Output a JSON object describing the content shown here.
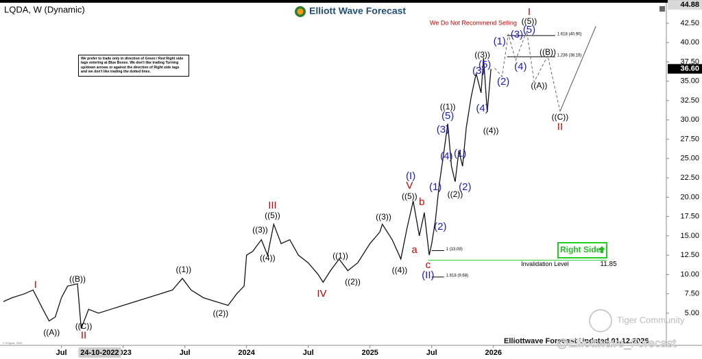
{
  "header": {
    "symbol": "LQDA, W (Dynamic)",
    "logo": "Elliott Wave Forecast",
    "notice": "We Do Not Recommend Selling",
    "disclaimer": "We prefer to trade only in direction of Green / Red Right side tags entering at Blue Boxes. We don't like trading Turning up/down arrows or against the direction of Right side tags and we don't like trading the dotted lines.",
    "right_side": "Right Side",
    "footer": "Elliottwave Forecast Updated 01.12.2026",
    "watermark": "Tiger Community",
    "handle": "@Elliottwave_Forecast",
    "copyright": "© eSignal, 2026"
  },
  "chart_data": {
    "type": "line",
    "color": "#111111",
    "x": [
      2022.03,
      2022.1,
      2022.2,
      2022.27,
      2022.35,
      2022.4,
      2022.45,
      2022.5,
      2022.55,
      2022.63,
      2022.66,
      2022.72,
      2022.8,
      2022.9,
      2023.0,
      2023.1,
      2023.2,
      2023.3,
      2023.4,
      2023.48,
      2023.55,
      2023.65,
      2023.75,
      2023.85,
      2023.92,
      2023.98,
      2024.0,
      2024.05,
      2024.12,
      2024.17,
      2024.22,
      2024.28,
      2024.35,
      2024.42,
      2024.5,
      2024.58,
      2024.62,
      2024.68,
      2024.75,
      2024.82,
      2024.9,
      2025.0,
      2025.08,
      2025.1,
      2025.18,
      2025.25,
      2025.3,
      2025.35,
      2025.4,
      2025.44,
      2025.48,
      2025.5,
      2025.53,
      2025.56,
      2025.6,
      2025.63,
      2025.66,
      2025.69,
      2025.72,
      2025.75,
      2025.78,
      2025.82,
      2025.86,
      2025.9,
      2025.92,
      2025.95,
      2025.98
    ],
    "values": [
      6.5,
      7.0,
      7.5,
      8.0,
      5.5,
      4.0,
      4.5,
      7.0,
      8.5,
      8.8,
      3.0,
      5.5,
      5.0,
      5.5,
      6.0,
      6.5,
      7.0,
      7.5,
      8.0,
      9.5,
      8.0,
      7.0,
      6.5,
      6.0,
      7.5,
      8.5,
      12.5,
      13.0,
      14.5,
      12.5,
      16.5,
      14.0,
      14.5,
      12.5,
      11.5,
      10.0,
      9.0,
      10.5,
      12.0,
      10.5,
      11.5,
      14.0,
      15.5,
      16.5,
      14.5,
      12.0,
      16.0,
      19.5,
      15.0,
      18.0,
      12.5,
      14.0,
      17.0,
      21.5,
      26.0,
      29.5,
      24.0,
      22.0,
      26.0,
      24.0,
      29.0,
      33.0,
      36.0,
      33.5,
      38.0,
      31.0,
      36.6
    ],
    "xlim": [
      2022.03,
      2027.39
    ],
    "ylim": [
      0.84,
      45.06
    ],
    "xticks": [
      {
        "value": 2022.5,
        "label": "Jul"
      },
      {
        "value": 2023,
        "label": "2023"
      },
      {
        "value": 2023.5,
        "label": "Jul"
      },
      {
        "value": 2024,
        "label": "2024"
      },
      {
        "value": 2024.5,
        "label": "Jul"
      },
      {
        "value": 2025,
        "label": "2025"
      },
      {
        "value": 2025.5,
        "label": "Jul"
      },
      {
        "value": 2026,
        "label": "2026"
      }
    ],
    "cursor_date": {
      "value": 2022.81,
      "label": "24-10-2022"
    },
    "yticks": [
      {
        "value": 5,
        "label": "5.00"
      },
      {
        "value": 7.5,
        "label": "7.50"
      },
      {
        "value": 10,
        "label": "10.00"
      },
      {
        "value": 12.5,
        "label": "12.50"
      },
      {
        "value": 15,
        "label": "15.00"
      },
      {
        "value": 17.5,
        "label": "17.50"
      },
      {
        "value": 20,
        "label": "20.00"
      },
      {
        "value": 22.5,
        "label": "22.50"
      },
      {
        "value": 25,
        "label": "25.00"
      },
      {
        "value": 27.5,
        "label": "27.50"
      },
      {
        "value": 30,
        "label": "30.00"
      },
      {
        "value": 32.5,
        "label": "32.50"
      },
      {
        "value": 35,
        "label": "35.00"
      },
      {
        "value": 37.5,
        "label": "37.50"
      },
      {
        "value": 40,
        "label": "40.00"
      },
      {
        "value": 42.5,
        "label": "42.50"
      }
    ],
    "price_labels": [
      {
        "value": 44.88,
        "label": "44.88",
        "color": "#d9d9d9",
        "text_color": "#000000"
      },
      {
        "value": 36.6,
        "label": "36.60",
        "color": "#000000",
        "text_color": "#ffffff"
      }
    ],
    "levels": [
      {
        "value": 40.9,
        "label": "1.618 (40.90)",
        "x": [
          2026.11,
          2026.5
        ],
        "color": "#000000"
      },
      {
        "value": 38.16,
        "label": "1.236 (38.16)",
        "x": [
          2026.11,
          2026.5
        ],
        "color": "#000000"
      },
      {
        "value": 13.09,
        "label": "1 (13.09)",
        "x": [
          2025.5,
          2025.6
        ],
        "color": "#000000"
      },
      {
        "value": 9.68,
        "label": "1.618 (9.68)",
        "x": [
          2025.5,
          2025.6
        ],
        "color": "#000000"
      },
      {
        "value": 11.85,
        "label": "Invalidation Level",
        "x": [
          2025.47,
          2026.92
        ],
        "color": "#2ecc40",
        "value_shown": true
      }
    ],
    "projection_dashed": {
      "x": [
        2026.01,
        2026.07,
        2026.12,
        2026.18,
        2026.27,
        2026.33,
        2026.44,
        2026.54
      ],
      "values": [
        36.7,
        35.6,
        41.1,
        37.7,
        41.5,
        34.9,
        38.3,
        31.1
      ],
      "color": "#666666"
    },
    "projection_solid": {
      "x": [
        2026.54,
        2026.83
      ],
      "values": [
        31.1,
        42.1
      ],
      "color": "#555555"
    },
    "annotations": [
      {
        "text": "I",
        "x": 2022.29,
        "y": 8.63,
        "color": "#cc0000"
      },
      {
        "text": "((A))",
        "x": 2022.42,
        "y": 2.44,
        "color": "#000000"
      },
      {
        "text": "((B))",
        "x": 2022.63,
        "y": 9.34,
        "color": "#000000"
      },
      {
        "text": "((C))",
        "x": 2022.68,
        "y": 3.24,
        "color": "#000000"
      },
      {
        "text": "II",
        "x": 2022.68,
        "y": 2.09,
        "color": "#cc0000"
      },
      {
        "text": "((1))",
        "x": 2023.49,
        "y": 10.58,
        "color": "#000000"
      },
      {
        "text": "((2))",
        "x": 2023.79,
        "y": 4.92,
        "color": "#000000"
      },
      {
        "text": "((3))",
        "x": 2024.11,
        "y": 15.71,
        "color": "#000000"
      },
      {
        "text": "((4))",
        "x": 2024.17,
        "y": 12.08,
        "color": "#000000"
      },
      {
        "text": "((5))",
        "x": 2024.21,
        "y": 17.56,
        "color": "#000000"
      },
      {
        "text": "III",
        "x": 2024.21,
        "y": 18.89,
        "color": "#cc0000"
      },
      {
        "text": "IV",
        "x": 2024.61,
        "y": 7.48,
        "color": "#cc0000"
      },
      {
        "text": "((1))",
        "x": 2024.76,
        "y": 12.35,
        "color": "#000000"
      },
      {
        "text": "((2))",
        "x": 2024.86,
        "y": 8.98,
        "color": "#000000"
      },
      {
        "text": "((3))",
        "x": 2025.11,
        "y": 17.39,
        "color": "#000000"
      },
      {
        "text": "((4))",
        "x": 2025.24,
        "y": 10.49,
        "color": "#000000"
      },
      {
        "text": "((5))",
        "x": 2025.32,
        "y": 20.04,
        "color": "#000000"
      },
      {
        "text": "V",
        "x": 2025.32,
        "y": 21.45,
        "color": "#cc0000"
      },
      {
        "text": "(I)",
        "x": 2025.33,
        "y": 22.69,
        "color": "#1a1acc"
      },
      {
        "text": "a",
        "x": 2025.36,
        "y": 13.14,
        "color": "#cc0000"
      },
      {
        "text": "b",
        "x": 2025.42,
        "y": 19.33,
        "color": "#cc0000"
      },
      {
        "text": "c",
        "x": 2025.47,
        "y": 11.2,
        "color": "#cc0000"
      },
      {
        "text": "(II)",
        "x": 2025.47,
        "y": 9.87,
        "color": "#1a1acc"
      },
      {
        "text": "(1)",
        "x": 2025.53,
        "y": 21.28,
        "color": "#1a1acc"
      },
      {
        "text": "(2)",
        "x": 2025.57,
        "y": 16.15,
        "color": "#1a1acc"
      },
      {
        "text": "((1))",
        "x": 2025.63,
        "y": 31.62,
        "color": "#000000"
      },
      {
        "text": "(5)",
        "x": 2025.63,
        "y": 30.47,
        "color": "#1a1acc"
      },
      {
        "text": "(3)",
        "x": 2025.59,
        "y": 28.7,
        "color": "#1a1acc"
      },
      {
        "text": "(4)",
        "x": 2025.62,
        "y": 25.26,
        "color": "#1a1acc"
      },
      {
        "text": "(1)",
        "x": 2025.73,
        "y": 25.61,
        "color": "#1a1acc"
      },
      {
        "text": "(2)",
        "x": 2025.77,
        "y": 21.28,
        "color": "#1a1acc"
      },
      {
        "text": "((2))",
        "x": 2025.69,
        "y": 20.3,
        "color": "#000000"
      },
      {
        "text": "((3))",
        "x": 2025.91,
        "y": 38.34,
        "color": "#000000"
      },
      {
        "text": "(3)",
        "x": 2025.88,
        "y": 36.31,
        "color": "#1a1acc"
      },
      {
        "text": "(5)",
        "x": 2025.93,
        "y": 37.11,
        "color": "#1a1acc"
      },
      {
        "text": "(4)",
        "x": 2025.91,
        "y": 31.45,
        "color": "#1a1acc"
      },
      {
        "text": "((4))",
        "x": 2025.98,
        "y": 28.53,
        "color": "#000000"
      },
      {
        "text": "(1)",
        "x": 2026.05,
        "y": 40.11,
        "color": "#1a1acc"
      },
      {
        "text": "(2)",
        "x": 2026.08,
        "y": 34.9,
        "color": "#1a1acc"
      },
      {
        "text": "(3)",
        "x": 2026.19,
        "y": 40.99,
        "color": "#1a1acc"
      },
      {
        "text": "(4)",
        "x": 2026.22,
        "y": 36.84,
        "color": "#1a1acc"
      },
      {
        "text": "(5)",
        "x": 2026.29,
        "y": 41.62,
        "color": "#1a1acc"
      },
      {
        "text": "((5))",
        "x": 2026.29,
        "y": 42.68,
        "color": "#000000"
      },
      {
        "text": "I",
        "x": 2026.29,
        "y": 43.91,
        "color": "#cc0000"
      },
      {
        "text": "((B))",
        "x": 2026.44,
        "y": 38.7,
        "color": "#000000"
      },
      {
        "text": "((A))",
        "x": 2026.37,
        "y": 34.37,
        "color": "#000000"
      },
      {
        "text": "((C))",
        "x": 2026.54,
        "y": 30.3,
        "color": "#000000"
      },
      {
        "text": "II",
        "x": 2026.54,
        "y": 29.06,
        "color": "#cc0000"
      }
    ]
  }
}
